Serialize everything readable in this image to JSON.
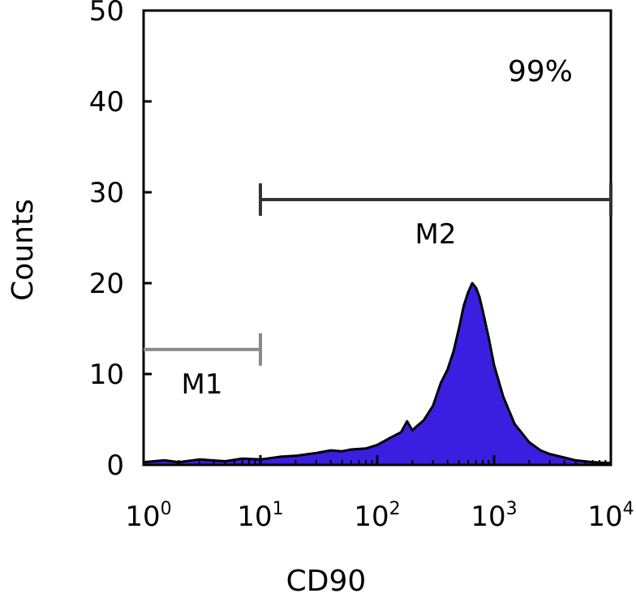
{
  "chart_data": {
    "type": "area",
    "xlabel": "CD90",
    "ylabel": "Counts",
    "x_scale": "log",
    "xlim": [
      1,
      10000
    ],
    "ylim": [
      0,
      50
    ],
    "x_ticks": [
      {
        "base": "10",
        "exp": "0"
      },
      {
        "base": "10",
        "exp": "1"
      },
      {
        "base": "10",
        "exp": "2"
      },
      {
        "base": "10",
        "exp": "3"
      },
      {
        "base": "10",
        "exp": "4"
      }
    ],
    "y_ticks": [
      "0",
      "10",
      "20",
      "30",
      "40",
      "50"
    ],
    "annotation": "99%",
    "fill_color": "#3a1fe0",
    "gates": [
      {
        "name": "M1",
        "x_range": [
          1,
          10
        ],
        "y": 12.7,
        "color": "#888888"
      },
      {
        "name": "M2",
        "x_range": [
          10,
          10000
        ],
        "y": 29.2,
        "color": "#333333"
      }
    ],
    "series": [
      {
        "x": [
          1,
          1.5,
          2,
          3,
          5,
          7,
          10,
          15,
          20,
          30,
          40,
          50,
          60,
          80,
          100,
          130,
          160,
          180,
          200,
          220,
          250,
          300,
          350,
          400,
          450,
          500,
          550,
          600,
          650,
          700,
          750,
          800,
          900,
          1000,
          1200,
          1500,
          2000,
          2500,
          3000,
          4000,
          5000,
          7000,
          10000
        ],
        "y": [
          0.3,
          0.5,
          0.3,
          0.6,
          0.4,
          0.7,
          0.6,
          0.9,
          1.0,
          1.3,
          1.6,
          1.5,
          1.7,
          1.8,
          2.2,
          3.0,
          3.6,
          4.8,
          3.8,
          4.3,
          4.9,
          6.5,
          9.0,
          10.5,
          12.5,
          15.0,
          17.5,
          19.0,
          20.0,
          19.5,
          18.5,
          17.0,
          14.0,
          11.0,
          7.5,
          4.5,
          2.5,
          1.6,
          1.2,
          0.8,
          0.5,
          0.3,
          0.2
        ]
      }
    ]
  }
}
